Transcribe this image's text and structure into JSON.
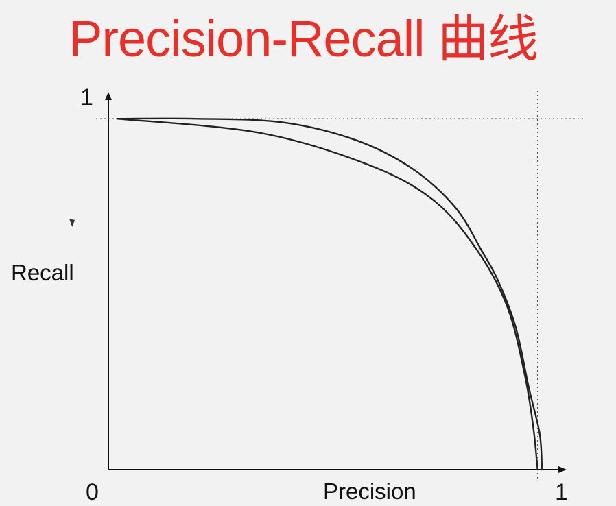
{
  "chart_data": {
    "type": "line",
    "title": "Precision-Recall 曲线",
    "xlabel": "Precision",
    "ylabel": "Recall",
    "xlim": [
      0,
      1
    ],
    "ylim": [
      0,
      1
    ],
    "x_tick_labels": [
      "0",
      "1"
    ],
    "y_tick_labels": [
      "1"
    ],
    "grid": false,
    "reference_lines": {
      "x": 0.99,
      "y": 0.99
    },
    "series": [
      {
        "color": "#222222",
        "points": [
          {
            "x": 0.02,
            "y": 0.99
          },
          {
            "x": 0.35,
            "y": 0.95
          },
          {
            "x": 0.6,
            "y": 0.86
          },
          {
            "x": 0.75,
            "y": 0.76
          },
          {
            "x": 0.85,
            "y": 0.62
          },
          {
            "x": 0.92,
            "y": 0.46
          },
          {
            "x": 0.96,
            "y": 0.27
          },
          {
            "x": 0.98,
            "y": 0.12
          },
          {
            "x": 0.99,
            "y": 0.0
          }
        ]
      },
      {
        "color": "#222222",
        "points": [
          {
            "x": 0.02,
            "y": 0.99
          },
          {
            "x": 0.2,
            "y": 0.99
          },
          {
            "x": 0.4,
            "y": 0.98
          },
          {
            "x": 0.57,
            "y": 0.93
          },
          {
            "x": 0.7,
            "y": 0.85
          },
          {
            "x": 0.8,
            "y": 0.74
          },
          {
            "x": 0.86,
            "y": 0.62
          },
          {
            "x": 0.9,
            "y": 0.53
          },
          {
            "x": 0.94,
            "y": 0.4
          },
          {
            "x": 0.97,
            "y": 0.23
          },
          {
            "x": 0.995,
            "y": 0.1
          },
          {
            "x": 1.0,
            "y": 0.0
          }
        ]
      }
    ]
  }
}
